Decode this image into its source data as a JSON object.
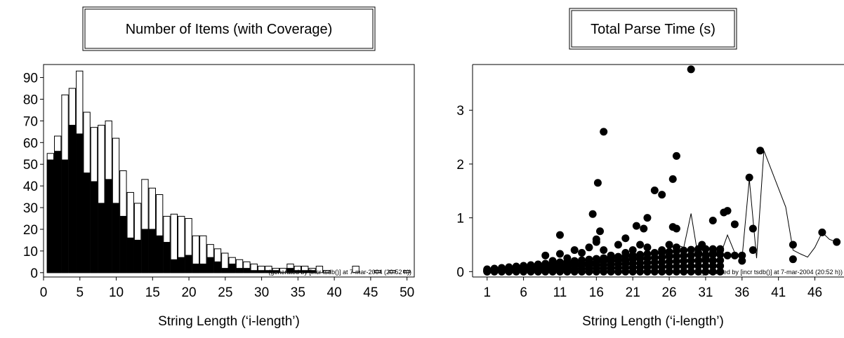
{
  "chart_data": [
    {
      "type": "bar",
      "title": "Number of Items (with Coverage)",
      "xlabel": "String Length (‘i-length’)",
      "ylabel": "",
      "footnote": "(generated by [incr tsdb()] at 7-mar-2004 (20:52 h))",
      "xlim": [
        0,
        51
      ],
      "ylim": [
        -2,
        96
      ],
      "xticks": [
        0,
        5,
        10,
        15,
        20,
        25,
        30,
        35,
        40,
        45,
        50
      ],
      "yticks": [
        0,
        10,
        20,
        30,
        40,
        50,
        60,
        70,
        80,
        90
      ],
      "grid": false,
      "categories": [
        1,
        2,
        3,
        4,
        5,
        6,
        7,
        8,
        9,
        10,
        11,
        12,
        13,
        14,
        15,
        16,
        17,
        18,
        19,
        20,
        21,
        22,
        23,
        24,
        25,
        26,
        27,
        28,
        29,
        30,
        31,
        32,
        33,
        34,
        35,
        36,
        37,
        38,
        39,
        40,
        41,
        42,
        43,
        44,
        45,
        46,
        47,
        48,
        49,
        50
      ],
      "series": [
        {
          "values": [
            55,
            63,
            82,
            85,
            93,
            74,
            67,
            68,
            70,
            62,
            47,
            37,
            32,
            43,
            39,
            36,
            26,
            27,
            26,
            25,
            17,
            17,
            13,
            11,
            9,
            7,
            6,
            5,
            4,
            3,
            3,
            2,
            2,
            4,
            3,
            3,
            2,
            3,
            1,
            0,
            0,
            0,
            3,
            0,
            0,
            1,
            0,
            1,
            0,
            1
          ]
        },
        {
          "values": [
            52,
            56,
            52,
            68,
            64,
            46,
            42,
            32,
            43,
            32,
            26,
            16,
            15,
            20,
            20,
            17,
            14,
            6,
            7,
            8,
            4,
            4,
            7,
            5,
            2,
            4,
            2,
            2,
            1,
            1,
            1,
            1,
            0,
            2,
            1,
            1,
            1,
            0,
            0,
            0,
            0,
            0,
            0,
            0,
            0,
            0,
            0,
            0,
            0,
            0
          ]
        }
      ]
    },
    {
      "type": "scatter",
      "title": "Total Parse Time (s)",
      "xlabel": "String Length (‘i-length’)",
      "ylabel": "",
      "footnote": "(generated by [incr tsdb()] at 7-mar-2004 (20:52 h))",
      "xlim": [
        -1,
        50
      ],
      "ylim": [
        -0.1,
        3.85
      ],
      "xticks": [
        1,
        6,
        11,
        16,
        21,
        26,
        31,
        36,
        41,
        46
      ],
      "yticks": [
        0,
        1,
        2,
        3
      ],
      "grid": false,
      "points": [
        [
          1,
          0
        ],
        [
          1,
          0.01
        ],
        [
          2,
          0.01
        ],
        [
          2,
          0.02
        ],
        [
          3,
          0.01
        ],
        [
          3,
          0.03
        ],
        [
          4,
          0.02
        ],
        [
          4,
          0.04
        ],
        [
          5,
          0.03
        ],
        [
          5,
          0.05
        ],
        [
          6,
          0.03
        ],
        [
          6,
          0.07
        ],
        [
          7,
          0.04
        ],
        [
          7,
          0.1
        ],
        [
          8,
          0.05
        ],
        [
          8,
          0.12
        ],
        [
          9,
          0.06
        ],
        [
          9,
          0.3
        ],
        [
          10,
          0.07
        ],
        [
          10,
          0.2
        ],
        [
          11,
          0.08
        ],
        [
          11,
          0.68
        ],
        [
          11,
          0.33
        ],
        [
          12,
          0.1
        ],
        [
          12,
          0.25
        ],
        [
          13,
          0.12
        ],
        [
          13,
          0.4
        ],
        [
          14,
          0.14
        ],
        [
          14,
          0.35
        ],
        [
          15,
          0.15
        ],
        [
          15,
          0.45
        ],
        [
          15.5,
          1.07
        ],
        [
          16,
          0.6
        ],
        [
          16,
          0.55
        ],
        [
          16,
          0.17
        ],
        [
          16.2,
          1.65
        ],
        [
          16.5,
          0.75
        ],
        [
          17,
          2.6
        ],
        [
          17,
          0.4
        ],
        [
          17,
          0.2
        ],
        [
          18,
          0.3
        ],
        [
          18,
          0.2
        ],
        [
          19,
          0.5
        ],
        [
          19,
          0.25
        ],
        [
          20,
          0.62
        ],
        [
          20,
          0.35
        ],
        [
          20,
          0.2
        ],
        [
          21,
          0.4
        ],
        [
          21,
          0.25
        ],
        [
          21.5,
          0.85
        ],
        [
          22,
          0.5
        ],
        [
          22,
          0.3
        ],
        [
          22.5,
          0.8
        ],
        [
          23,
          1.0
        ],
        [
          23,
          0.45
        ],
        [
          23,
          0.25
        ],
        [
          24,
          1.51
        ],
        [
          24,
          0.35
        ],
        [
          25,
          1.43
        ],
        [
          25,
          0.4
        ],
        [
          26,
          0.5
        ],
        [
          26,
          0.3
        ],
        [
          26.5,
          1.72
        ],
        [
          27,
          2.15
        ],
        [
          26.5,
          0.83
        ],
        [
          27,
          0.8
        ],
        [
          27,
          0.45
        ],
        [
          28,
          0.3
        ],
        [
          28,
          0.2
        ],
        [
          29,
          3.76
        ],
        [
          29,
          0.3
        ],
        [
          30,
          0.35
        ],
        [
          30,
          0.2
        ],
        [
          30.5,
          0.5
        ],
        [
          31,
          0.25
        ],
        [
          32,
          0.95
        ],
        [
          32,
          0.35
        ],
        [
          32,
          0.2
        ],
        [
          33,
          0.4
        ],
        [
          33.5,
          1.1
        ],
        [
          34,
          1.13
        ],
        [
          34,
          0.3
        ],
        [
          35,
          0.88
        ],
        [
          35,
          0.3
        ],
        [
          36,
          0.2
        ],
        [
          36,
          0.3
        ],
        [
          37,
          1.75
        ],
        [
          37.5,
          0.8
        ],
        [
          37.5,
          0.4
        ],
        [
          38.5,
          2.25
        ],
        [
          43,
          0.5
        ],
        [
          43,
          0.23
        ],
        [
          47,
          0.73
        ],
        [
          49,
          0.55
        ]
      ],
      "line": {
        "x": [
          1,
          2,
          3,
          4,
          5,
          6,
          7,
          8,
          9,
          10,
          11,
          12,
          13,
          14,
          15,
          16,
          17,
          18,
          19,
          20,
          21,
          22,
          23,
          24,
          25,
          26,
          27,
          28,
          29,
          30,
          31,
          32,
          33,
          34,
          35,
          36,
          37,
          38,
          39,
          40,
          41,
          42,
          43,
          44,
          45,
          46,
          47,
          48,
          49
        ],
        "y": [
          0.01,
          0.015,
          0.02,
          0.025,
          0.03,
          0.04,
          0.05,
          0.06,
          0.07,
          0.08,
          0.1,
          0.12,
          0.14,
          0.16,
          0.18,
          0.2,
          0.22,
          0.24,
          0.26,
          0.28,
          0.3,
          0.32,
          0.34,
          0.36,
          0.38,
          0.42,
          0.5,
          0.45,
          1.08,
          0.25,
          0.15,
          0.42,
          0.3,
          0.68,
          0.35,
          0.25,
          1.72,
          0.25,
          2.25,
          1.9,
          1.55,
          1.2,
          0.4,
          0.33,
          0.27,
          0.45,
          0.73,
          0.6,
          0.55
        ]
      }
    }
  ]
}
